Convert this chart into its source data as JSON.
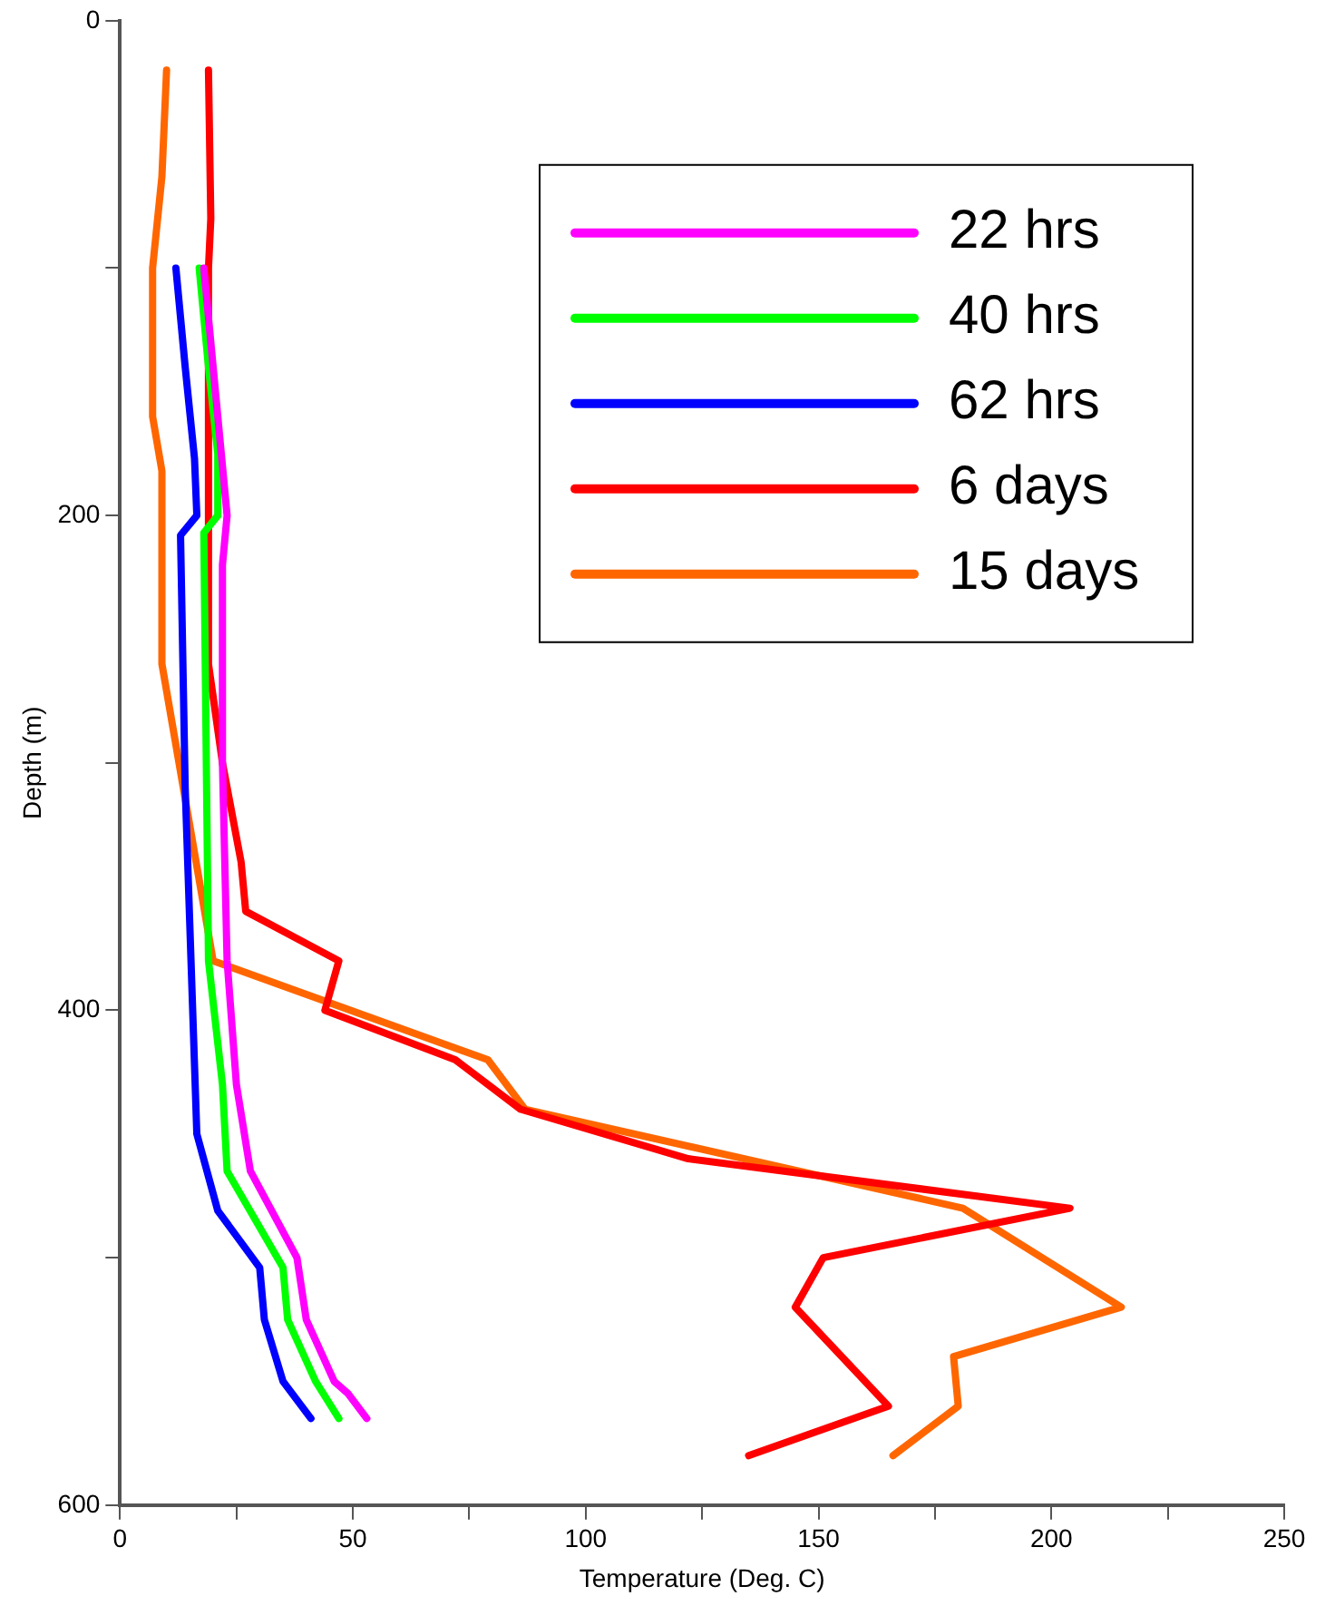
{
  "chart_data": {
    "type": "line",
    "xlabel": "Temperature (Deg. C)",
    "ylabel": "Depth (m)",
    "xlim": [
      0,
      250
    ],
    "ylim": [
      600,
      0
    ],
    "xticks": [
      0,
      {
        "value": 25,
        "label": null
      },
      50,
      {
        "value": 75,
        "label": null
      },
      100,
      {
        "value": 125,
        "label": null
      },
      150,
      {
        "value": 175,
        "label": null
      },
      200,
      {
        "value": 225,
        "label": null
      },
      250
    ],
    "yticks": [
      0,
      {
        "value": 100,
        "label": null
      },
      200,
      {
        "value": 300,
        "label": null
      },
      400,
      {
        "value": 500,
        "label": null
      },
      600
    ],
    "legend": "top right",
    "marker": "none",
    "line_style": "solid",
    "series": [
      {
        "name": "22 hrs",
        "color": "#ff00ff",
        "x": [
          18,
          20,
          23,
          22,
          22,
          23,
          25,
          28,
          38,
          40,
          46,
          49,
          53
        ],
        "values": [
          100,
          140,
          200,
          220,
          300,
          380,
          430,
          465,
          500,
          525,
          550,
          555,
          565
        ]
      },
      {
        "name": "40 hrs",
        "color": "#00ff00",
        "x": [
          17,
          19,
          21,
          21,
          18,
          19,
          22,
          23,
          35,
          36,
          42,
          47
        ],
        "values": [
          100,
          140,
          175,
          200,
          207,
          380,
          430,
          465,
          504,
          525,
          550,
          565
        ]
      },
      {
        "name": "62 hrs",
        "color": "#0000ff",
        "x": [
          12,
          14,
          16,
          16.5,
          13,
          14,
          16.5,
          21,
          30,
          31,
          35,
          41
        ],
        "values": [
          100,
          140,
          177,
          200,
          208,
          310,
          450,
          481,
          504,
          525,
          550,
          565
        ]
      },
      {
        "name": "6 days",
        "color": "#ff0000",
        "x": [
          19,
          19.5,
          19,
          19,
          22,
          26,
          27,
          47,
          44,
          72,
          86,
          122,
          204,
          151,
          145,
          165,
          135
        ],
        "values": [
          20,
          80,
          100,
          260,
          300,
          340,
          360,
          380,
          400,
          420,
          440,
          460,
          480,
          500,
          520,
          560,
          580
        ]
      },
      {
        "name": "15 days",
        "color": "#ff6600",
        "x": [
          10,
          9,
          7,
          7,
          9,
          9,
          20,
          79,
          87,
          181,
          215,
          179,
          180,
          166
        ],
        "values": [
          20,
          63,
          100,
          160,
          182,
          260,
          380,
          420,
          440,
          480,
          520,
          540,
          560,
          580
        ]
      }
    ]
  }
}
